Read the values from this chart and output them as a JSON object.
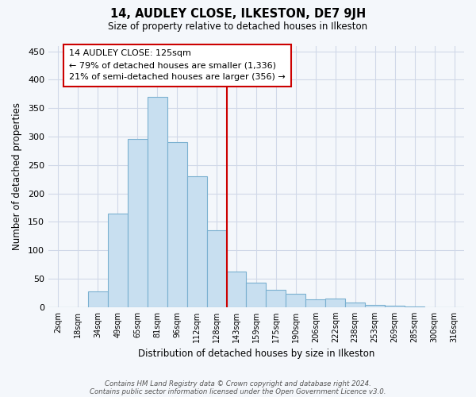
{
  "title": "14, AUDLEY CLOSE, ILKESTON, DE7 9JH",
  "subtitle": "Size of property relative to detached houses in Ilkeston",
  "xlabel": "Distribution of detached houses by size in Ilkeston",
  "ylabel": "Number of detached properties",
  "bar_labels": [
    "2sqm",
    "18sqm",
    "34sqm",
    "49sqm",
    "65sqm",
    "81sqm",
    "96sqm",
    "112sqm",
    "128sqm",
    "143sqm",
    "159sqm",
    "175sqm",
    "190sqm",
    "206sqm",
    "222sqm",
    "238sqm",
    "253sqm",
    "269sqm",
    "285sqm",
    "300sqm",
    "316sqm"
  ],
  "bar_values": [
    0,
    0,
    27,
    165,
    296,
    370,
    290,
    230,
    135,
    62,
    43,
    30,
    23,
    13,
    15,
    8,
    4,
    2,
    1,
    0,
    0
  ],
  "bar_color": "#c8dff0",
  "bar_edge_color": "#7ab0d0",
  "vline_x": 8.5,
  "vline_color": "#cc0000",
  "annotation_title": "14 AUDLEY CLOSE: 125sqm",
  "annotation_line1": "← 79% of detached houses are smaller (1,336)",
  "annotation_line2": "21% of semi-detached houses are larger (356) →",
  "annotation_box_color": "#ffffff",
  "annotation_box_edge": "#cc0000",
  "ylim": [
    0,
    460
  ],
  "yticks": [
    0,
    50,
    100,
    150,
    200,
    250,
    300,
    350,
    400,
    450
  ],
  "footnote1": "Contains HM Land Registry data © Crown copyright and database right 2024.",
  "footnote2": "Contains public sector information licensed under the Open Government Licence v3.0.",
  "bg_color": "#f4f7fb",
  "grid_color": "#d0d8e8"
}
